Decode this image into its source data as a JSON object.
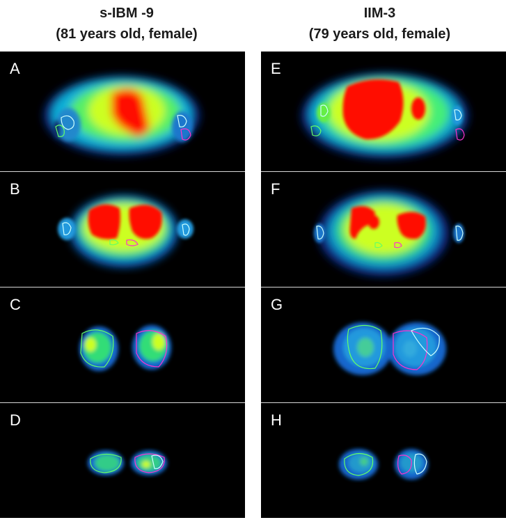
{
  "columns": [
    {
      "title": "s-IBM -9",
      "subtitle": "(81 years old, female)"
    },
    {
      "title": "IIM-3",
      "subtitle": "(79 years old, female)"
    }
  ],
  "panels": {
    "A": "A",
    "B": "B",
    "C": "C",
    "D": "D",
    "E": "E",
    "F": "F",
    "G": "G",
    "H": "H"
  },
  "colors": {
    "background": "#000000",
    "hot": "#ff0000",
    "warm": "#ffff00",
    "mid": "#00ff66",
    "cool": "#00aaff",
    "cold": "#0033aa",
    "roi_green": "#66ff66",
    "roi_magenta": "#ff33cc",
    "roi_cyan": "#ccffff"
  }
}
